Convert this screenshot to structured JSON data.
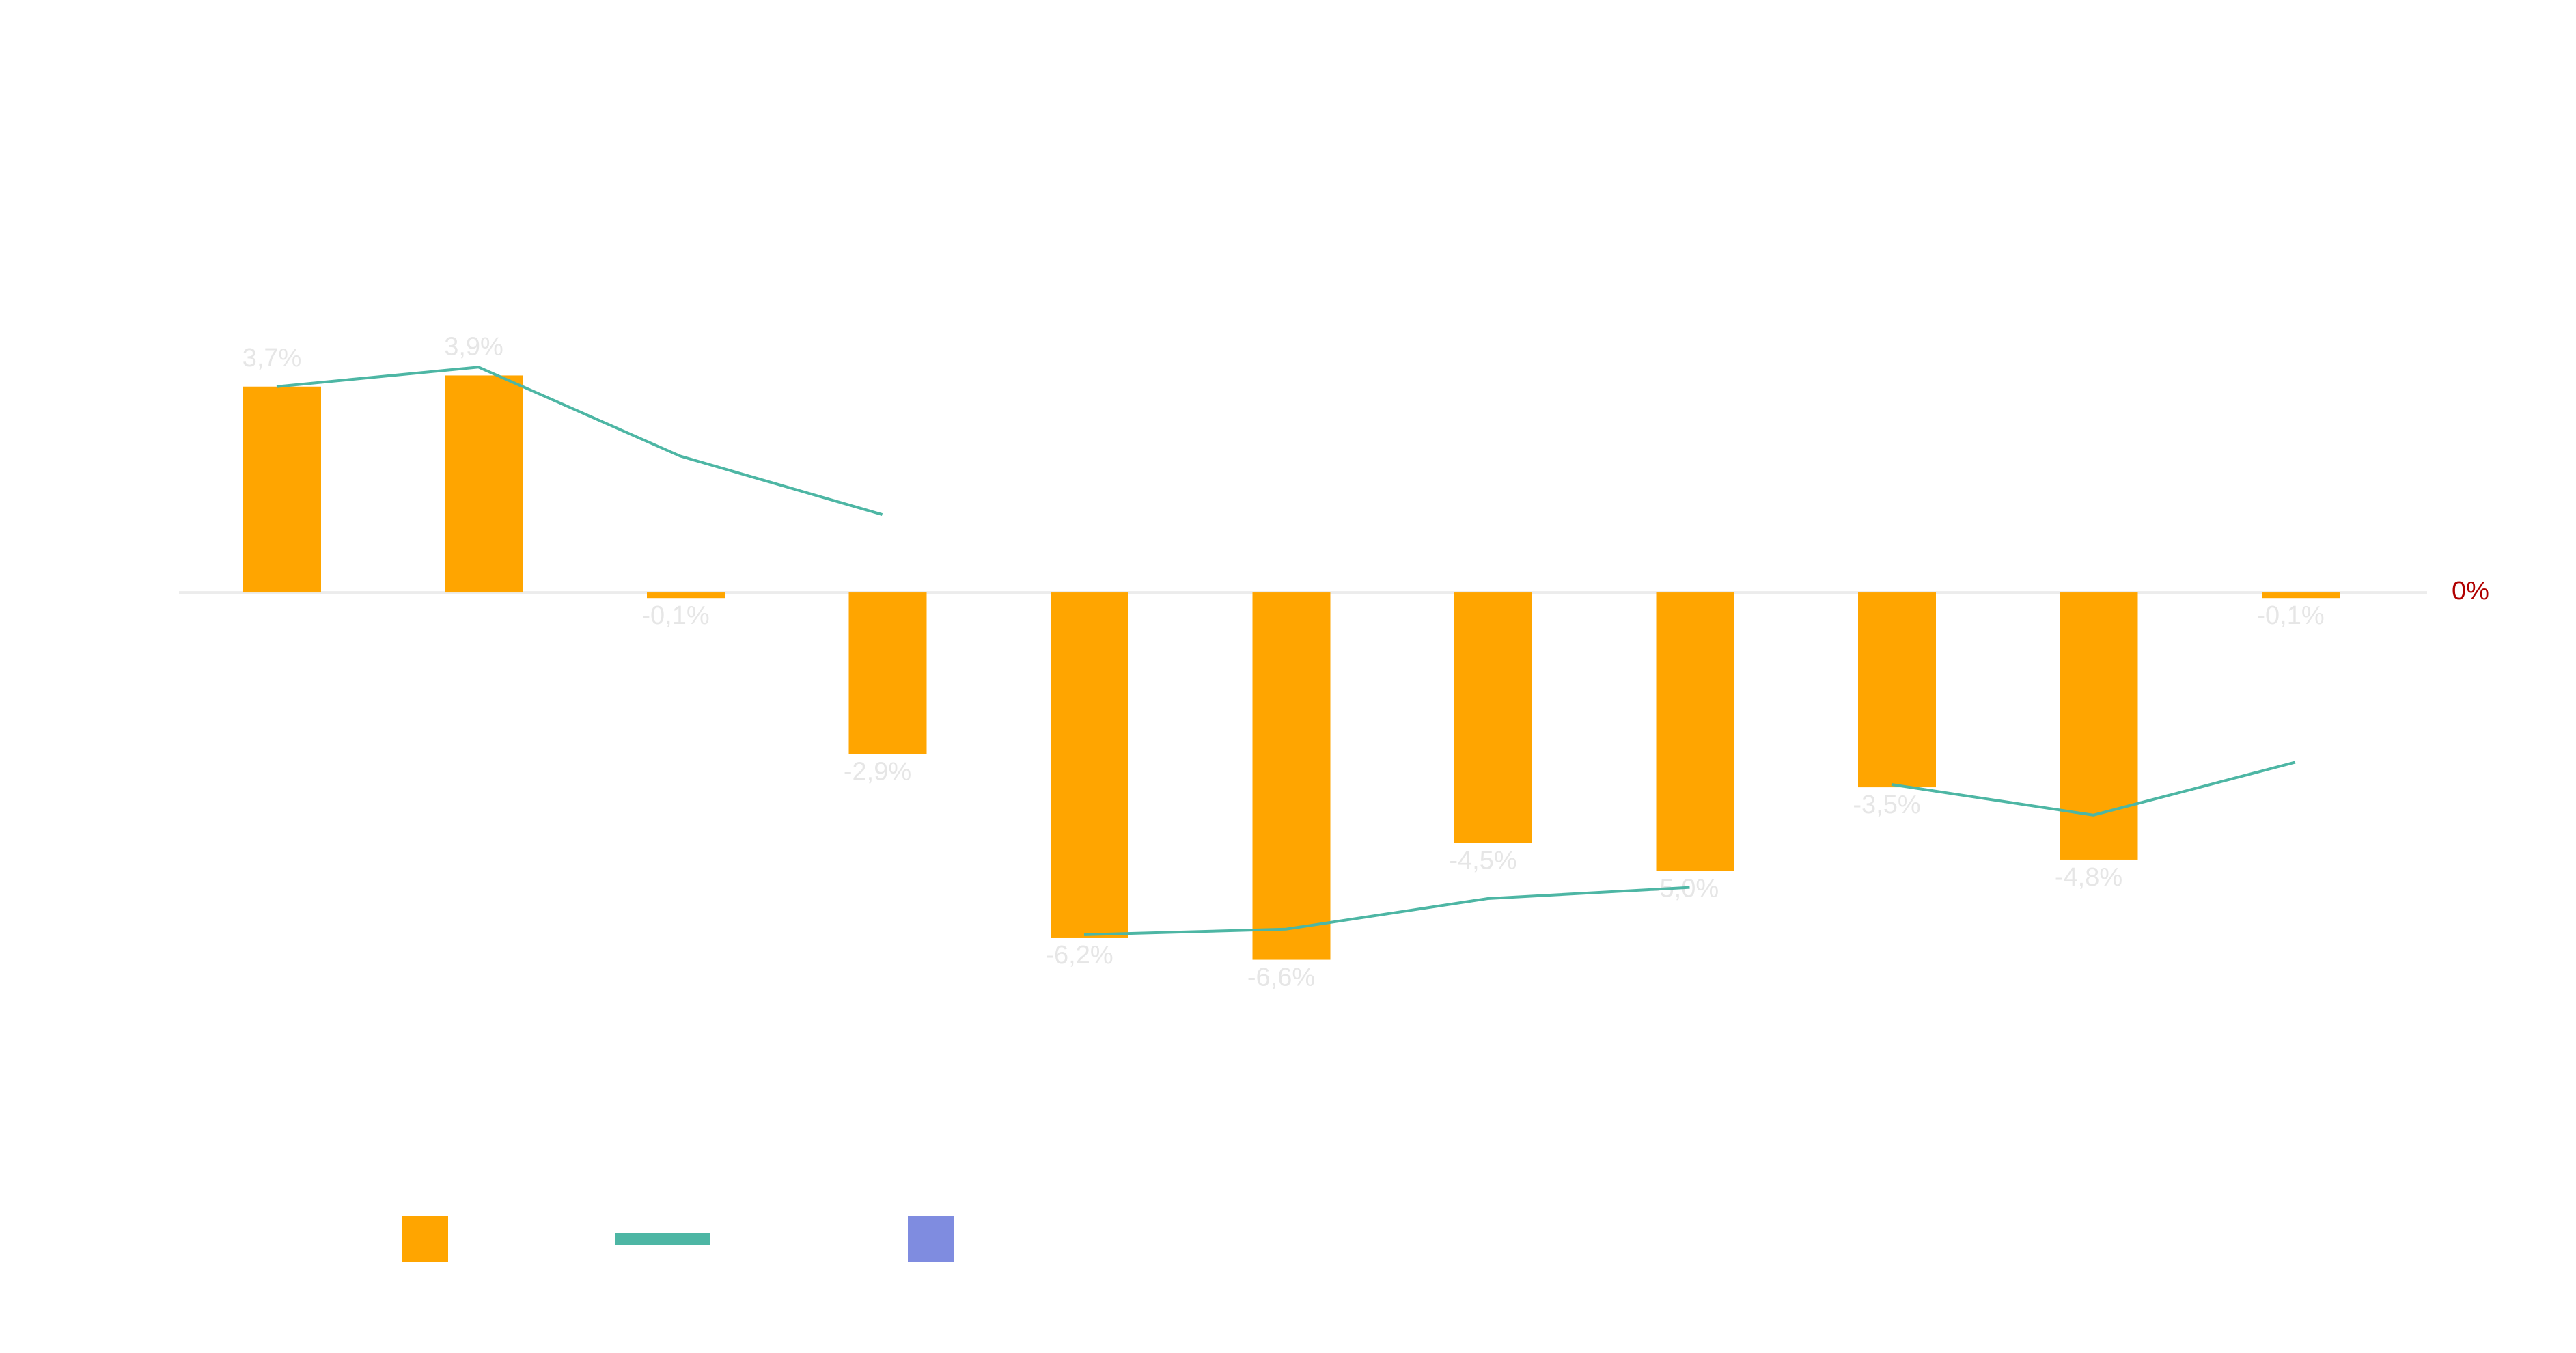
{
  "chart_data": {
    "type": "bar",
    "categories": [
      null,
      null,
      null,
      null,
      null,
      null,
      null,
      null,
      null,
      null,
      null
    ],
    "series": [
      {
        "type": "bar",
        "color": "#ffa500",
        "values": [
          3.7,
          3.9,
          -0.1,
          -2.9,
          -6.2,
          -6.6,
          -4.5,
          -5.0,
          -3.5,
          -4.8,
          -0.1
        ],
        "value_labels": [
          "3,7%",
          "3,9%",
          "-0,1%",
          "-2,9%",
          "-6,2%",
          "-6,6%",
          "-4,5%",
          "-5,0%",
          "-3,5%",
          "-4,8%",
          "-0,1%"
        ]
      },
      {
        "type": "line",
        "color": "#4db6a4",
        "values": [
          3.7,
          4.05,
          2.45,
          1.4,
          null,
          null,
          null,
          null,
          null,
          null,
          null
        ]
      },
      {
        "type": "line",
        "color": "#4db6a4",
        "values": [
          null,
          null,
          null,
          null,
          -6.15,
          -6.05,
          -5.5,
          -5.3,
          null,
          null,
          null
        ]
      },
      {
        "type": "line",
        "color": "#4db6a4",
        "values": [
          null,
          null,
          null,
          null,
          null,
          null,
          null,
          null,
          -3.45,
          -4.0,
          -3.05
        ]
      },
      {
        "type": "bar",
        "color": "#7f8ce0",
        "values": [
          null,
          null,
          null,
          null,
          null,
          null,
          null,
          null,
          null,
          null,
          null
        ]
      }
    ],
    "ylim": [
      -9,
      7
    ],
    "yticks": [
      {
        "value": 0,
        "label": "0%"
      }
    ],
    "ytick_color": "#b00000",
    "value_label_color": "#e6e6e6"
  }
}
